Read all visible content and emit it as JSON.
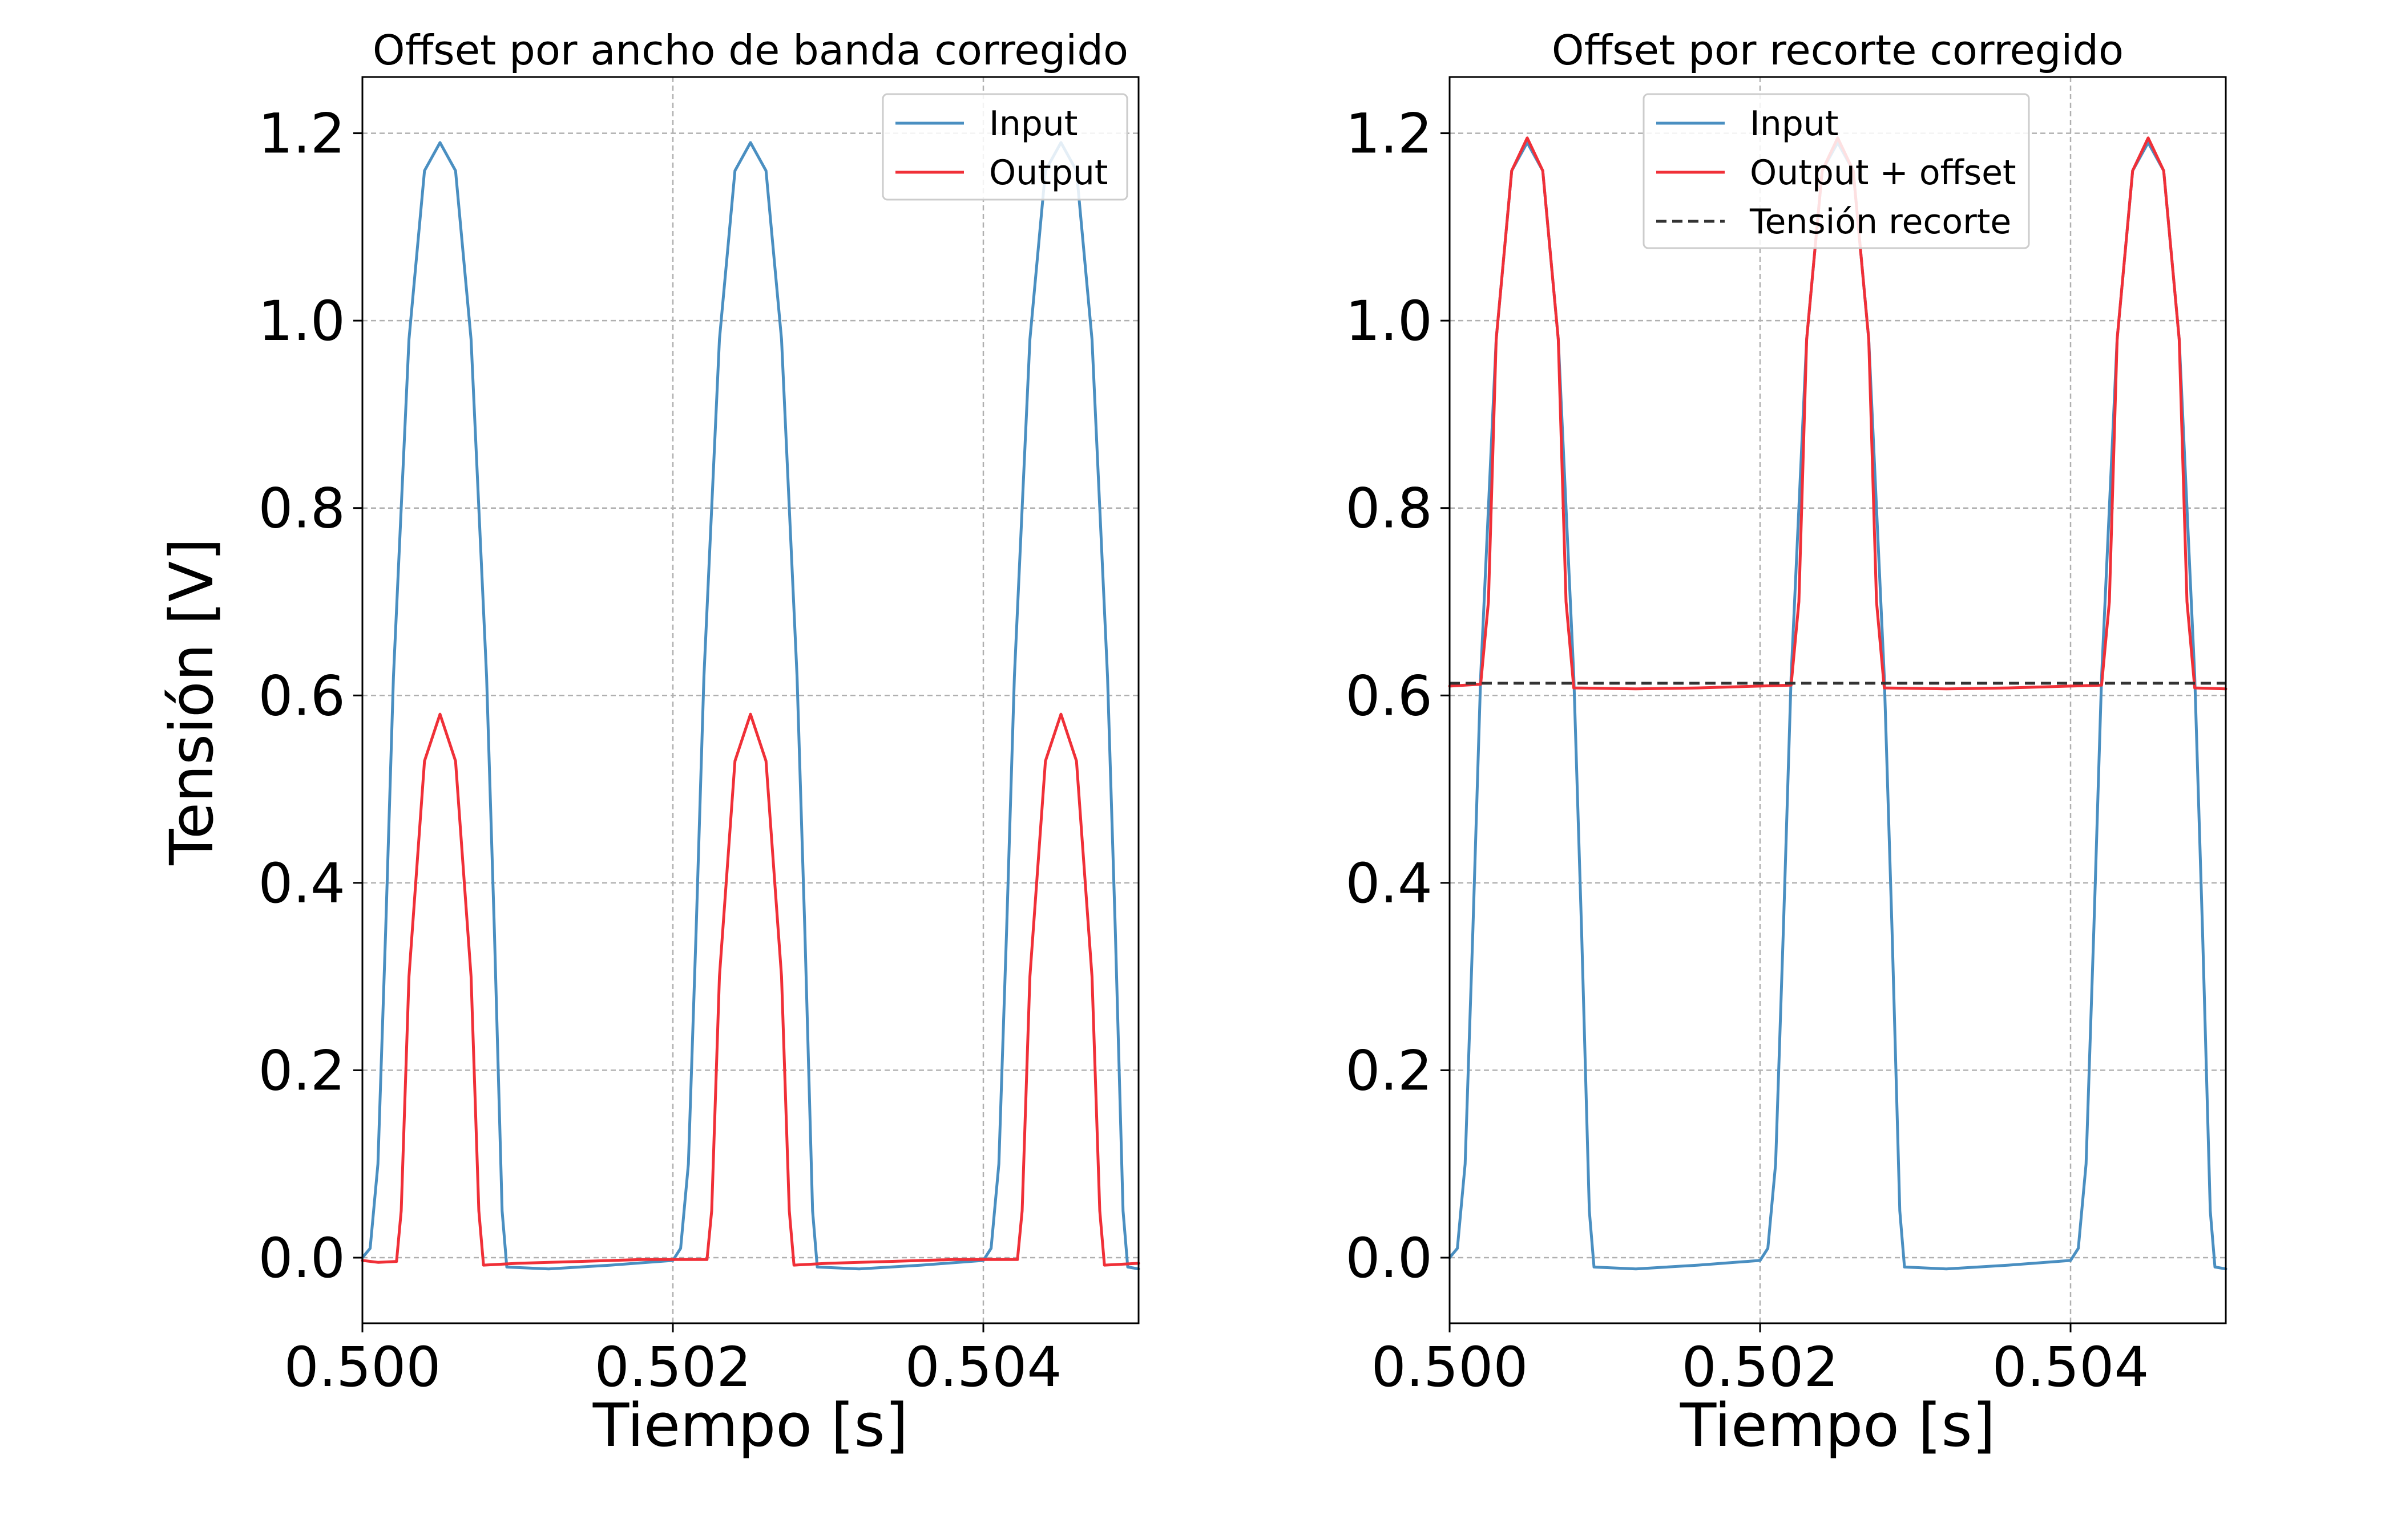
{
  "figure": {
    "ylabel": "Tensión [V]"
  },
  "colors": {
    "input": "#4a8fc1",
    "output": "#f03038",
    "clip": "#333333",
    "grid": "#b0b0b0",
    "frame": "#000000"
  },
  "chart_data": [
    {
      "type": "line",
      "title": "Offset por ancho de banda corregido",
      "xlabel": "Tiempo [s]",
      "ylabel": "Tensión [V]",
      "xlim": [
        0.5,
        0.505
      ],
      "ylim": [
        -0.07,
        1.26
      ],
      "xticks": [
        0.5,
        0.502,
        0.504
      ],
      "xtick_labels": [
        "0.500",
        "0.502",
        "0.504"
      ],
      "yticks": [
        0.0,
        0.2,
        0.4,
        0.6,
        0.8,
        1.0,
        1.2
      ],
      "ytick_labels": [
        "0.0",
        "0.2",
        "0.4",
        "0.6",
        "0.8",
        "1.0",
        "1.2"
      ],
      "grid": true,
      "legend_position": "top-right",
      "series": [
        {
          "name": "Input",
          "color": "#4a8fc1",
          "style": "solid",
          "points": [
            [
              0.5,
              0.0
            ],
            [
              0.50005,
              0.01
            ],
            [
              0.5001,
              0.1
            ],
            [
              0.50015,
              0.35
            ],
            [
              0.5002,
              0.62
            ],
            [
              0.5003,
              0.98
            ],
            [
              0.5004,
              1.16
            ],
            [
              0.5005,
              1.19
            ],
            [
              0.5006,
              1.16
            ],
            [
              0.5007,
              0.98
            ],
            [
              0.5008,
              0.62
            ],
            [
              0.50085,
              0.35
            ],
            [
              0.5009,
              0.05
            ],
            [
              0.50093,
              -0.01
            ],
            [
              0.5012,
              -0.012
            ],
            [
              0.5016,
              -0.008
            ],
            [
              0.502,
              -0.003
            ],
            [
              0.50205,
              0.01
            ],
            [
              0.5021,
              0.1
            ],
            [
              0.50215,
              0.35
            ],
            [
              0.5022,
              0.62
            ],
            [
              0.5023,
              0.98
            ],
            [
              0.5024,
              1.16
            ],
            [
              0.5025,
              1.19
            ],
            [
              0.5026,
              1.16
            ],
            [
              0.5027,
              0.98
            ],
            [
              0.5028,
              0.62
            ],
            [
              0.50285,
              0.35
            ],
            [
              0.5029,
              0.05
            ],
            [
              0.50293,
              -0.01
            ],
            [
              0.5032,
              -0.012
            ],
            [
              0.5036,
              -0.008
            ],
            [
              0.504,
              -0.003
            ],
            [
              0.50405,
              0.01
            ],
            [
              0.5041,
              0.1
            ],
            [
              0.50415,
              0.35
            ],
            [
              0.5042,
              0.62
            ],
            [
              0.5043,
              0.98
            ],
            [
              0.5044,
              1.16
            ],
            [
              0.5045,
              1.19
            ],
            [
              0.5046,
              1.16
            ],
            [
              0.5047,
              0.98
            ],
            [
              0.5048,
              0.62
            ],
            [
              0.50485,
              0.35
            ],
            [
              0.5049,
              0.05
            ],
            [
              0.50493,
              -0.01
            ],
            [
              0.505,
              -0.012
            ]
          ]
        },
        {
          "name": "Output",
          "color": "#f03038",
          "style": "solid",
          "points": [
            [
              0.5,
              -0.003
            ],
            [
              0.5001,
              -0.005
            ],
            [
              0.50022,
              -0.004
            ],
            [
              0.50025,
              0.05
            ],
            [
              0.5003,
              0.3
            ],
            [
              0.5004,
              0.53
            ],
            [
              0.5005,
              0.58
            ],
            [
              0.5006,
              0.53
            ],
            [
              0.5007,
              0.3
            ],
            [
              0.50075,
              0.05
            ],
            [
              0.50078,
              -0.008
            ],
            [
              0.501,
              -0.006
            ],
            [
              0.5014,
              -0.004
            ],
            [
              0.5018,
              -0.002
            ],
            [
              0.50222,
              -0.002
            ],
            [
              0.50225,
              0.05
            ],
            [
              0.5023,
              0.3
            ],
            [
              0.5024,
              0.53
            ],
            [
              0.5025,
              0.58
            ],
            [
              0.5026,
              0.53
            ],
            [
              0.5027,
              0.3
            ],
            [
              0.50275,
              0.05
            ],
            [
              0.50278,
              -0.008
            ],
            [
              0.503,
              -0.006
            ],
            [
              0.5034,
              -0.004
            ],
            [
              0.5038,
              -0.002
            ],
            [
              0.50422,
              -0.002
            ],
            [
              0.50425,
              0.05
            ],
            [
              0.5043,
              0.3
            ],
            [
              0.5044,
              0.53
            ],
            [
              0.5045,
              0.58
            ],
            [
              0.5046,
              0.53
            ],
            [
              0.5047,
              0.3
            ],
            [
              0.50475,
              0.05
            ],
            [
              0.50478,
              -0.008
            ],
            [
              0.505,
              -0.006
            ]
          ]
        }
      ]
    },
    {
      "type": "line",
      "title": "Offset por recorte corregido",
      "xlabel": "Tiempo [s]",
      "ylabel": "",
      "xlim": [
        0.5,
        0.505
      ],
      "ylim": [
        -0.07,
        1.26
      ],
      "xticks": [
        0.5,
        0.502,
        0.504
      ],
      "xtick_labels": [
        "0.500",
        "0.502",
        "0.504"
      ],
      "yticks": [
        0.0,
        0.2,
        0.4,
        0.6,
        0.8,
        1.0,
        1.2
      ],
      "ytick_labels": [
        "0.0",
        "0.2",
        "0.4",
        "0.6",
        "0.8",
        "1.0",
        "1.2"
      ],
      "grid": true,
      "legend_position": "top-center",
      "series": [
        {
          "name": "Input",
          "color": "#4a8fc1",
          "style": "solid",
          "points": [
            [
              0.5,
              0.0
            ],
            [
              0.50005,
              0.01
            ],
            [
              0.5001,
              0.1
            ],
            [
              0.50015,
              0.35
            ],
            [
              0.5002,
              0.62
            ],
            [
              0.5003,
              0.98
            ],
            [
              0.5004,
              1.16
            ],
            [
              0.5005,
              1.19
            ],
            [
              0.5006,
              1.16
            ],
            [
              0.5007,
              0.98
            ],
            [
              0.5008,
              0.62
            ],
            [
              0.50085,
              0.35
            ],
            [
              0.5009,
              0.05
            ],
            [
              0.50093,
              -0.01
            ],
            [
              0.5012,
              -0.012
            ],
            [
              0.5016,
              -0.008
            ],
            [
              0.502,
              -0.003
            ],
            [
              0.50205,
              0.01
            ],
            [
              0.5021,
              0.1
            ],
            [
              0.50215,
              0.35
            ],
            [
              0.5022,
              0.62
            ],
            [
              0.5023,
              0.98
            ],
            [
              0.5024,
              1.16
            ],
            [
              0.5025,
              1.19
            ],
            [
              0.5026,
              1.16
            ],
            [
              0.5027,
              0.98
            ],
            [
              0.5028,
              0.62
            ],
            [
              0.50285,
              0.35
            ],
            [
              0.5029,
              0.05
            ],
            [
              0.50293,
              -0.01
            ],
            [
              0.5032,
              -0.012
            ],
            [
              0.5036,
              -0.008
            ],
            [
              0.504,
              -0.003
            ],
            [
              0.50405,
              0.01
            ],
            [
              0.5041,
              0.1
            ],
            [
              0.50415,
              0.35
            ],
            [
              0.5042,
              0.62
            ],
            [
              0.5043,
              0.98
            ],
            [
              0.5044,
              1.16
            ],
            [
              0.5045,
              1.19
            ],
            [
              0.5046,
              1.16
            ],
            [
              0.5047,
              0.98
            ],
            [
              0.5048,
              0.62
            ],
            [
              0.50485,
              0.35
            ],
            [
              0.5049,
              0.05
            ],
            [
              0.50493,
              -0.01
            ],
            [
              0.505,
              -0.012
            ]
          ]
        },
        {
          "name": "Output + offset",
          "color": "#f03038",
          "style": "solid",
          "points": [
            [
              0.5,
              0.61
            ],
            [
              0.5002,
              0.612
            ],
            [
              0.50025,
              0.7
            ],
            [
              0.5003,
              0.98
            ],
            [
              0.5004,
              1.16
            ],
            [
              0.5005,
              1.195
            ],
            [
              0.5006,
              1.16
            ],
            [
              0.5007,
              0.98
            ],
            [
              0.50075,
              0.7
            ],
            [
              0.5008,
              0.608
            ],
            [
              0.5012,
              0.607
            ],
            [
              0.5016,
              0.608
            ],
            [
              0.5022,
              0.611
            ],
            [
              0.50225,
              0.7
            ],
            [
              0.5023,
              0.98
            ],
            [
              0.5024,
              1.16
            ],
            [
              0.5025,
              1.195
            ],
            [
              0.5026,
              1.16
            ],
            [
              0.5027,
              0.98
            ],
            [
              0.50275,
              0.7
            ],
            [
              0.5028,
              0.608
            ],
            [
              0.5032,
              0.607
            ],
            [
              0.5036,
              0.608
            ],
            [
              0.5042,
              0.611
            ],
            [
              0.50425,
              0.7
            ],
            [
              0.5043,
              0.98
            ],
            [
              0.5044,
              1.16
            ],
            [
              0.5045,
              1.195
            ],
            [
              0.5046,
              1.16
            ],
            [
              0.5047,
              0.98
            ],
            [
              0.50475,
              0.7
            ],
            [
              0.5048,
              0.608
            ],
            [
              0.505,
              0.607
            ]
          ]
        },
        {
          "name": "Tensión recorte",
          "color": "#333333",
          "style": "dashed",
          "points": [
            [
              0.5,
              0.613
            ],
            [
              0.505,
              0.613
            ]
          ]
        }
      ]
    }
  ]
}
